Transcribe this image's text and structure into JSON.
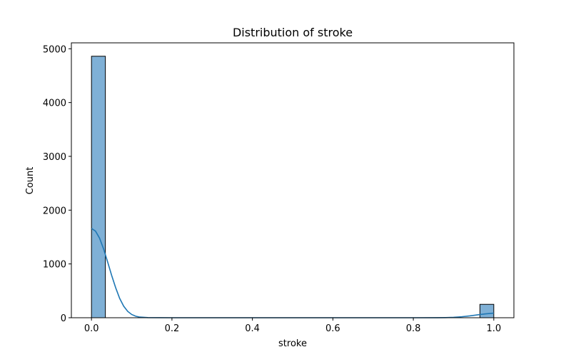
{
  "chart_data": {
    "type": "bar",
    "title": "Distribution of stroke",
    "xlabel": "stroke",
    "ylabel": "Count",
    "xlim": [
      -0.05,
      1.05
    ],
    "ylim": [
      0,
      5110
    ],
    "x_ticks": [
      0.0,
      0.2,
      0.4,
      0.6,
      0.8,
      1.0
    ],
    "x_tick_labels": [
      "0.0",
      "0.2",
      "0.4",
      "0.6",
      "0.8",
      "1.0"
    ],
    "y_ticks": [
      0,
      1000,
      2000,
      3000,
      4000,
      5000
    ],
    "y_tick_labels": [
      "0",
      "1000",
      "2000",
      "3000",
      "4000",
      "5000"
    ],
    "bins": [
      {
        "x0": 0.0,
        "x1": 0.0345,
        "count": 4861
      },
      {
        "x0": 0.9655,
        "x1": 1.0,
        "count": 249
      }
    ],
    "kde": {
      "x": [
        0.0,
        0.01,
        0.02,
        0.03,
        0.04,
        0.05,
        0.06,
        0.07,
        0.08,
        0.09,
        0.1,
        0.11,
        0.12,
        0.14,
        0.2,
        0.4,
        0.6,
        0.8,
        0.86,
        0.88,
        0.9,
        0.92,
        0.94,
        0.96,
        0.98,
        1.0
      ],
      "y": [
        1660,
        1610,
        1480,
        1280,
        1040,
        790,
        560,
        360,
        215,
        118,
        60,
        28,
        12,
        2,
        0,
        0,
        0,
        0,
        1,
        3,
        8,
        18,
        34,
        54,
        72,
        85
      ]
    },
    "bar_color": "#7fb0d6",
    "bar_edge_color": "#000000",
    "kde_color": "#1f77b4",
    "grid": false,
    "legend": "none"
  }
}
